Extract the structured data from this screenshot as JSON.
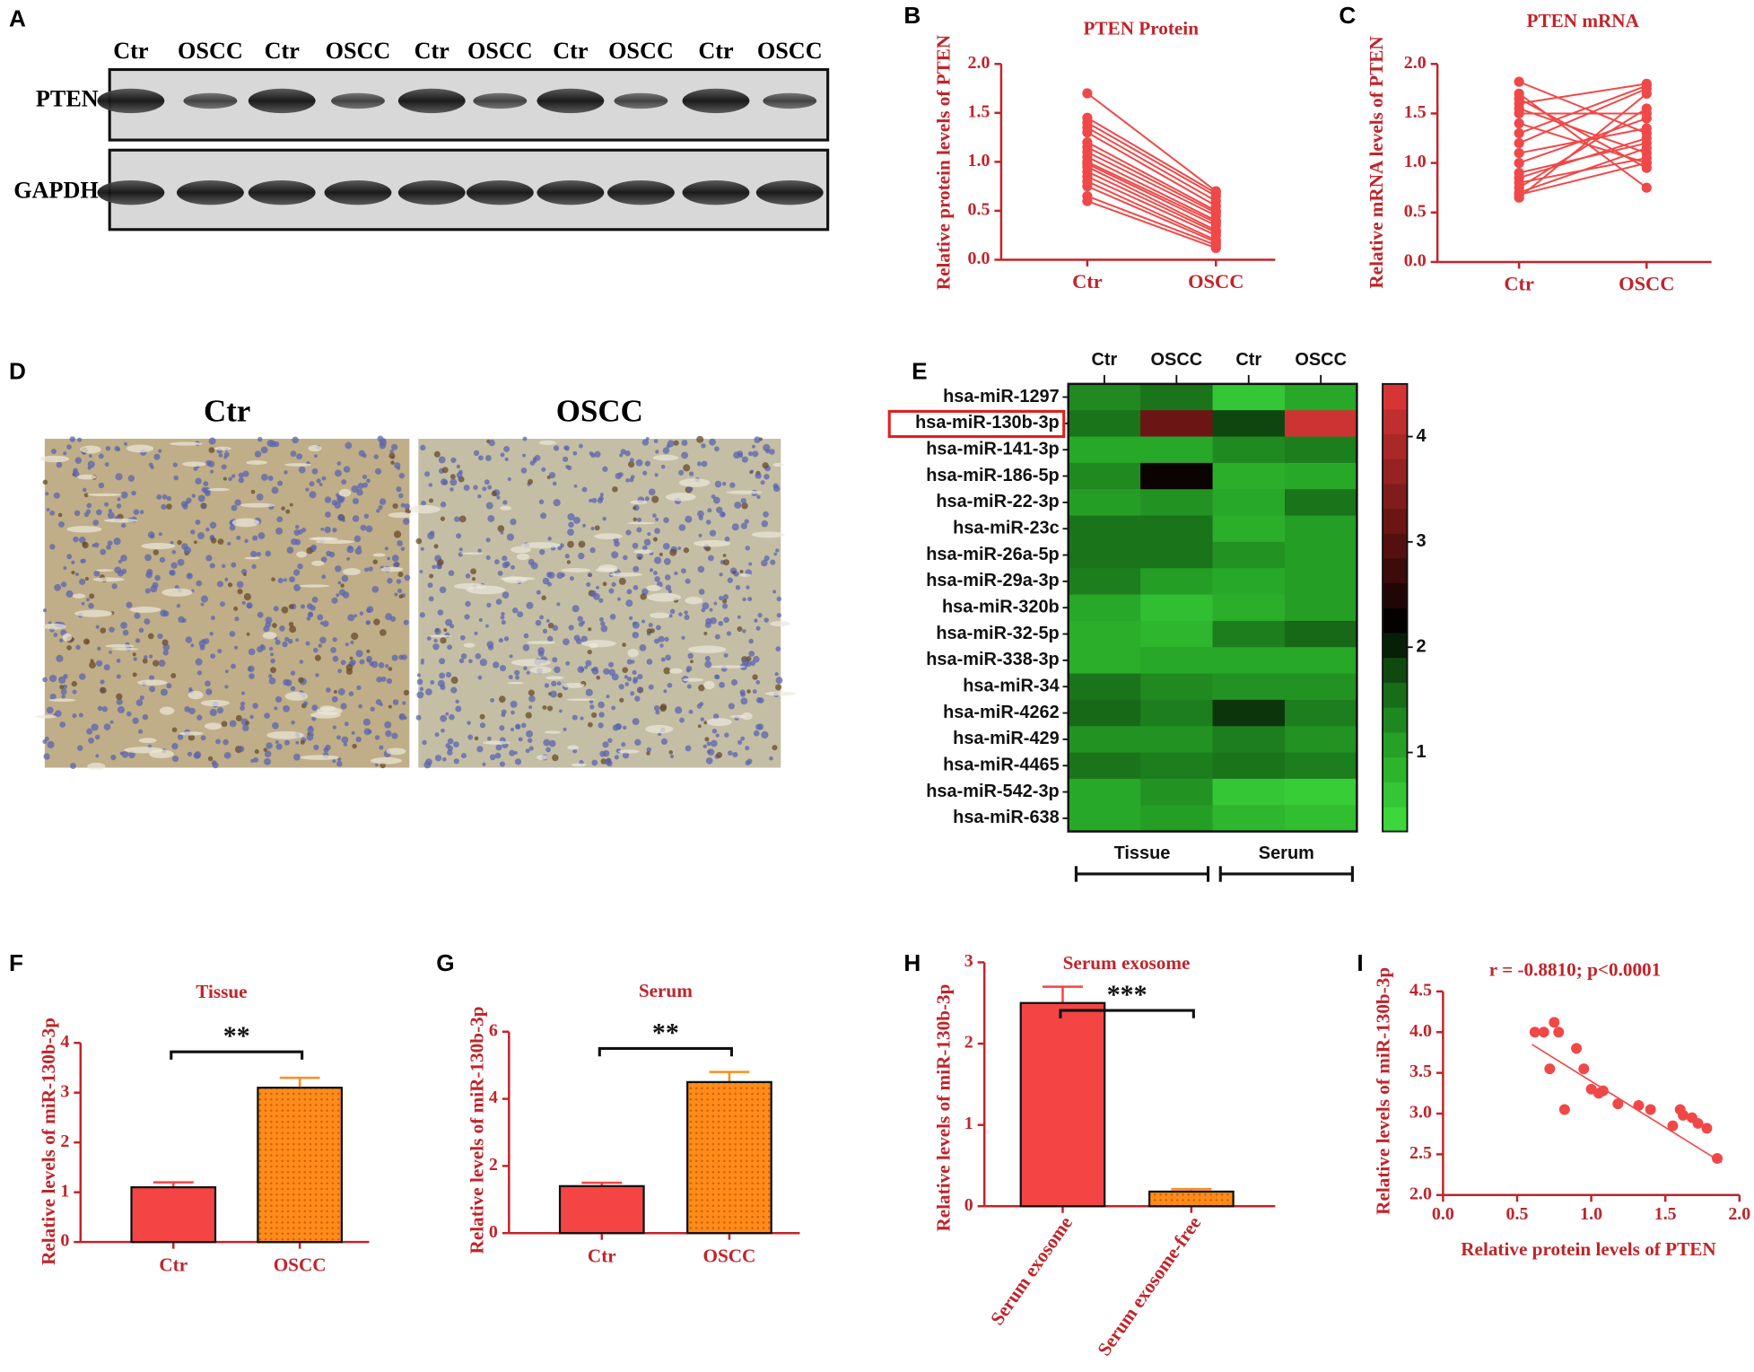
{
  "blot": {
    "label": "A",
    "lanes": [
      "Ctr",
      "OSCC",
      "Ctr",
      "OSCC",
      "Ctr",
      "OSCC",
      "Ctr",
      "OSCC",
      "Ctr",
      "OSCC"
    ],
    "rows": [
      "PTEN",
      "GAPDH"
    ]
  },
  "ihc": {
    "label": "D",
    "panels": [
      "Ctr",
      "OSCC"
    ]
  },
  "chart_data": [
    {
      "type": "paired",
      "label": "B",
      "title": "PTEN Protein",
      "ylabel": "Relative protein levels of PTEN",
      "categories": [
        "Ctr",
        "OSCC"
      ],
      "color": "#f04848",
      "ylim": [
        0,
        2
      ],
      "yticks": [
        {
          "value": 0,
          "label": "0.0"
        },
        {
          "value": 0.5,
          "label": "0.5"
        },
        {
          "value": 1,
          "label": "1.0"
        },
        {
          "value": 1.5,
          "label": "1.5"
        },
        {
          "value": 2,
          "label": "2.0"
        }
      ],
      "series": [
        {
          "values": [
            1.7,
            0.7
          ]
        },
        {
          "values": [
            1.45,
            0.68
          ]
        },
        {
          "values": [
            1.4,
            0.65
          ]
        },
        {
          "values": [
            1.35,
            0.6
          ]
        },
        {
          "values": [
            1.3,
            0.55
          ]
        },
        {
          "values": [
            1.2,
            0.5
          ]
        },
        {
          "values": [
            1.15,
            0.48
          ]
        },
        {
          "values": [
            1.1,
            0.45
          ]
        },
        {
          "values": [
            1.05,
            0.4
          ]
        },
        {
          "values": [
            1.0,
            0.38
          ]
        },
        {
          "values": [
            0.98,
            0.35
          ]
        },
        {
          "values": [
            0.95,
            0.3
          ]
        },
        {
          "values": [
            0.9,
            0.28
          ]
        },
        {
          "values": [
            0.85,
            0.25
          ]
        },
        {
          "values": [
            0.8,
            0.2
          ]
        },
        {
          "values": [
            0.75,
            0.18
          ]
        },
        {
          "values": [
            0.65,
            0.15
          ]
        },
        {
          "values": [
            0.6,
            0.12
          ]
        }
      ]
    },
    {
      "type": "paired",
      "label": "C",
      "title": "PTEN mRNA",
      "ylabel": "Relative mRNA levels of PTEN",
      "categories": [
        "Ctr",
        "OSCC"
      ],
      "color": "#f04848",
      "ylim": [
        0,
        2
      ],
      "yticks": [
        {
          "value": 0,
          "label": "0.0"
        },
        {
          "value": 0.5,
          "label": "0.5"
        },
        {
          "value": 1,
          "label": "1.0"
        },
        {
          "value": 1.5,
          "label": "1.5"
        },
        {
          "value": 2,
          "label": "2.0"
        }
      ],
      "series": [
        {
          "values": [
            1.82,
            1.3
          ]
        },
        {
          "values": [
            1.7,
            0.75
          ]
        },
        {
          "values": [
            1.6,
            1.8
          ]
        },
        {
          "values": [
            1.55,
            1.1
          ]
        },
        {
          "values": [
            1.5,
            1.5
          ]
        },
        {
          "values": [
            1.4,
            1.0
          ]
        },
        {
          "values": [
            1.2,
            1.75
          ]
        },
        {
          "values": [
            1.0,
            1.45
          ]
        },
        {
          "values": [
            0.9,
            1.2
          ]
        },
        {
          "values": [
            0.8,
            1.05
          ]
        },
        {
          "values": [
            0.75,
            1.55
          ]
        },
        {
          "values": [
            0.7,
            1.15
          ]
        },
        {
          "values": [
            0.65,
            1.7
          ]
        },
        {
          "values": [
            1.65,
            0.95
          ]
        },
        {
          "values": [
            1.1,
            1.35
          ]
        },
        {
          "values": [
            0.85,
            1.25
          ]
        },
        {
          "values": [
            0.68,
            1.0
          ]
        },
        {
          "values": [
            1.3,
            1.78
          ]
        }
      ]
    },
    {
      "type": "heatmap",
      "label": "E",
      "columns": [
        "Ctr",
        "OSCC",
        "Ctr",
        "OSCC"
      ],
      "groups": [
        "Tissue",
        "Serum"
      ],
      "highlight_rows": [
        1
      ],
      "rows": [
        "hsa-miR-1297",
        "hsa-miR-130b-3p",
        "hsa-miR-141-3p",
        "hsa-miR-186-5p",
        "hsa-miR-22-3p",
        "hsa-miR-23c",
        "hsa-miR-26a-5p",
        "hsa-miR-29a-3p",
        "hsa-miR-320b",
        "hsa-miR-32-5p",
        "hsa-miR-338-3p",
        "hsa-miR-34",
        "hsa-miR-4262",
        "hsa-miR-429",
        "hsa-miR-4465",
        "hsa-miR-542-3p",
        "hsa-miR-638"
      ],
      "values": [
        [
          1.3,
          1.5,
          0.6,
          1.0
        ],
        [
          1.5,
          3.2,
          1.8,
          4.3
        ],
        [
          1.0,
          1.0,
          1.3,
          1.4
        ],
        [
          1.3,
          2.3,
          0.9,
          1.0
        ],
        [
          1.1,
          1.2,
          1.0,
          1.5
        ],
        [
          1.5,
          1.5,
          0.9,
          1.1
        ],
        [
          1.5,
          1.5,
          1.2,
          1.1
        ],
        [
          1.4,
          1.1,
          1.0,
          1.1
        ],
        [
          1.0,
          0.7,
          0.9,
          1.1
        ],
        [
          0.9,
          0.8,
          1.4,
          1.6
        ],
        [
          0.9,
          1.0,
          1.0,
          1.0
        ],
        [
          1.5,
          1.3,
          1.2,
          1.2
        ],
        [
          1.6,
          1.4,
          1.9,
          1.4
        ],
        [
          1.2,
          1.2,
          1.4,
          1.2
        ],
        [
          1.5,
          1.4,
          1.5,
          1.4
        ],
        [
          1.0,
          1.2,
          0.6,
          0.5
        ],
        [
          1.0,
          1.1,
          0.8,
          0.7
        ]
      ],
      "zlim": [
        0.25,
        4.5
      ],
      "zticks": [
        1,
        2,
        3,
        4
      ],
      "colorscale": [
        [
          0.25,
          "#3ee03e"
        ],
        [
          1.0,
          "#28a828"
        ],
        [
          1.6,
          "#176917"
        ],
        [
          2.2,
          "#000000"
        ],
        [
          3.0,
          "#5a1010"
        ],
        [
          4.5,
          "#e03838"
        ]
      ]
    },
    {
      "type": "bar",
      "label": "F",
      "title": "Tissue",
      "ylabel": "Relative levels of miR-130b-3p",
      "categories": [
        "Ctr",
        "OSCC"
      ],
      "values": [
        1.1,
        3.1
      ],
      "errors": [
        0.1,
        0.2
      ],
      "colors": [
        "#f44444",
        "#ff8c1a"
      ],
      "hatch": [
        false,
        true
      ],
      "annotation": "**",
      "ylim": [
        0,
        4
      ],
      "yticks": [
        0,
        1,
        2,
        3,
        4
      ]
    },
    {
      "type": "bar",
      "label": "G",
      "title": "Serum",
      "ylabel": "Relative levels of miR-130b-3p",
      "categories": [
        "Ctr",
        "OSCC"
      ],
      "values": [
        1.4,
        4.5
      ],
      "errors": [
        0.1,
        0.3
      ],
      "colors": [
        "#f44444",
        "#ff8c1a"
      ],
      "hatch": [
        false,
        true
      ],
      "annotation": "**",
      "ylim": [
        0,
        6
      ],
      "yticks": [
        0,
        2,
        4,
        6
      ]
    },
    {
      "type": "bar",
      "label": "H",
      "title": "Serum exosome",
      "ylabel": "Relative levels of miR-130b-3p",
      "categories": [
        "Serum exosome",
        "Serum exosome-free"
      ],
      "values": [
        2.5,
        0.18
      ],
      "errors": [
        0.2,
        0.03
      ],
      "colors": [
        "#f44444",
        "#ff8c1a"
      ],
      "hatch": [
        false,
        true
      ],
      "annotation": "***",
      "ylim": [
        0,
        3
      ],
      "yticks": [
        0,
        1,
        2,
        3
      ]
    },
    {
      "type": "scatter",
      "label": "I",
      "title": "r = -0.8810; p<0.0001",
      "xlabel": "Relative protein levels of PTEN",
      "ylabel": "Relative levels of miR-130b-3p",
      "color": "#f04848",
      "x": [
        0.62,
        0.68,
        0.72,
        0.75,
        0.78,
        0.82,
        0.9,
        0.95,
        1.0,
        1.05,
        1.08,
        1.18,
        1.32,
        1.4,
        1.55,
        1.6,
        1.62,
        1.68,
        1.72,
        1.78,
        1.85
      ],
      "y": [
        4.0,
        4.0,
        3.55,
        4.12,
        4.0,
        3.05,
        3.8,
        3.55,
        3.3,
        3.25,
        3.28,
        3.12,
        3.1,
        3.05,
        2.85,
        3.05,
        2.98,
        2.95,
        2.88,
        2.82,
        2.45
      ],
      "fit": {
        "x": [
          0.6,
          1.88
        ],
        "y": [
          3.85,
          2.4
        ]
      },
      "xlim": [
        0,
        2
      ],
      "xticks": [
        {
          "value": 0,
          "label": "0.0"
        },
        {
          "value": 0.5,
          "label": "0.5"
        },
        {
          "value": 1,
          "label": "1.0"
        },
        {
          "value": 1.5,
          "label": "1.5"
        },
        {
          "value": 2,
          "label": "2.0"
        }
      ],
      "ylim": [
        2,
        4.5
      ],
      "yticks": [
        {
          "value": 2,
          "label": "2.0"
        },
        {
          "value": 2.5,
          "label": "2.5"
        },
        {
          "value": 3,
          "label": "3.0"
        },
        {
          "value": 3.5,
          "label": "3.5"
        },
        {
          "value": 4,
          "label": "4.0"
        },
        {
          "value": 4.5,
          "label": "4.5"
        }
      ]
    }
  ]
}
